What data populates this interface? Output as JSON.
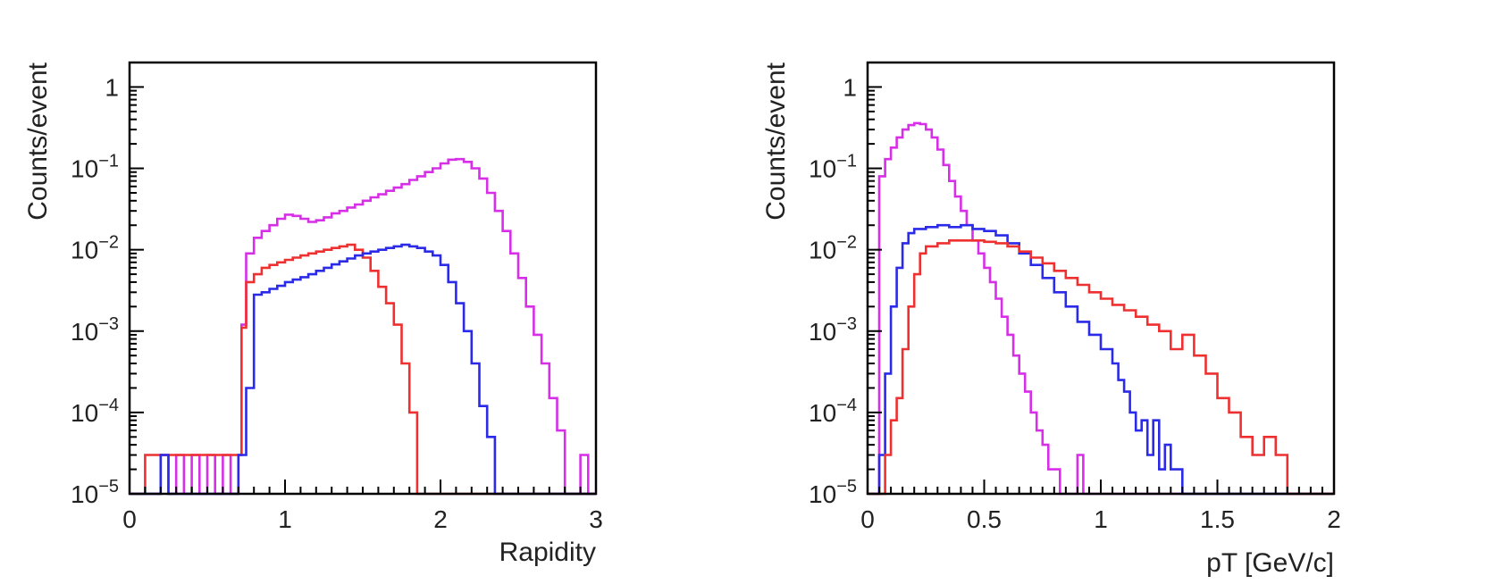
{
  "chart_data": [
    {
      "type": "line",
      "subtype": "step-histogram",
      "title": "",
      "xlabel": "Rapidity",
      "ylabel": "Counts/event",
      "yscale": "log",
      "xlim": [
        0,
        3
      ],
      "ylim": [
        1e-05,
        2
      ],
      "x_ticks": [
        "0",
        "1",
        "2",
        "3"
      ],
      "y_ticks": [
        {
          "base": "1",
          "exp": ""
        },
        {
          "base": "10",
          "exp": "−1"
        },
        {
          "base": "10",
          "exp": "−2"
        },
        {
          "base": "10",
          "exp": "−3"
        },
        {
          "base": "10",
          "exp": "−4"
        },
        {
          "base": "10",
          "exp": "−5"
        }
      ],
      "series": [
        {
          "name": "magenta",
          "color": "#d72ee8",
          "x": [
            0.0,
            0.2,
            0.25,
            0.3,
            0.35,
            0.4,
            0.45,
            0.5,
            0.55,
            0.6,
            0.65,
            0.7,
            0.72,
            0.75,
            0.8,
            0.85,
            0.9,
            0.95,
            1.0,
            1.05,
            1.1,
            1.15,
            1.2,
            1.25,
            1.3,
            1.35,
            1.4,
            1.45,
            1.5,
            1.55,
            1.6,
            1.65,
            1.7,
            1.75,
            1.8,
            1.85,
            1.9,
            1.95,
            2.0,
            2.05,
            2.1,
            2.15,
            2.2,
            2.25,
            2.3,
            2.35,
            2.4,
            2.45,
            2.5,
            2.55,
            2.6,
            2.65,
            2.7,
            2.75,
            2.8,
            2.85,
            2.9,
            2.95
          ],
          "y": [
            1e-05,
            3e-05,
            1e-05,
            3e-05,
            1e-05,
            3e-05,
            1e-05,
            3e-05,
            1e-05,
            3e-05,
            1e-05,
            3e-05,
            0.0012,
            0.009,
            0.014,
            0.017,
            0.02,
            0.024,
            0.027,
            0.026,
            0.024,
            0.022,
            0.023,
            0.025,
            0.028,
            0.03,
            0.033,
            0.036,
            0.04,
            0.044,
            0.048,
            0.053,
            0.058,
            0.064,
            0.072,
            0.08,
            0.09,
            0.1,
            0.115,
            0.128,
            0.13,
            0.12,
            0.1,
            0.075,
            0.05,
            0.03,
            0.017,
            0.009,
            0.0045,
            0.002,
            0.0009,
            0.0004,
            0.00015,
            6e-05,
            1e-05,
            1e-05,
            3e-05,
            1e-05
          ]
        },
        {
          "name": "red",
          "color": "#ee3030",
          "x": [
            0.0,
            0.1,
            0.15,
            0.2,
            0.25,
            0.3,
            0.35,
            0.4,
            0.45,
            0.5,
            0.55,
            0.6,
            0.65,
            0.7,
            0.72,
            0.75,
            0.8,
            0.85,
            0.9,
            0.95,
            1.0,
            1.05,
            1.1,
            1.15,
            1.2,
            1.25,
            1.3,
            1.35,
            1.4,
            1.45,
            1.5,
            1.55,
            1.6,
            1.65,
            1.7,
            1.75,
            1.8,
            1.85
          ],
          "y": [
            1e-05,
            3e-05,
            3e-05,
            3e-05,
            3e-05,
            3e-05,
            3e-05,
            3e-05,
            3e-05,
            3e-05,
            3e-05,
            3e-05,
            3e-05,
            3e-05,
            0.0011,
            0.004,
            0.005,
            0.006,
            0.0065,
            0.007,
            0.0075,
            0.008,
            0.0085,
            0.009,
            0.0095,
            0.01,
            0.0105,
            0.011,
            0.0115,
            0.01,
            0.008,
            0.0055,
            0.0035,
            0.0022,
            0.0012,
            0.0004,
            0.0001,
            1e-05
          ]
        },
        {
          "name": "blue",
          "color": "#2a2ae8",
          "x": [
            0.0,
            0.2,
            0.25,
            0.7,
            0.75,
            0.8,
            0.85,
            0.9,
            0.95,
            1.0,
            1.05,
            1.1,
            1.15,
            1.2,
            1.25,
            1.3,
            1.35,
            1.4,
            1.45,
            1.5,
            1.55,
            1.6,
            1.65,
            1.7,
            1.75,
            1.8,
            1.85,
            1.9,
            1.95,
            2.0,
            2.05,
            2.1,
            2.15,
            2.2,
            2.25,
            2.3,
            2.35
          ],
          "y": [
            1e-05,
            3e-05,
            1e-05,
            3e-05,
            0.0002,
            0.0028,
            0.003,
            0.0033,
            0.0036,
            0.004,
            0.0043,
            0.0046,
            0.005,
            0.0055,
            0.006,
            0.0066,
            0.0072,
            0.0078,
            0.0085,
            0.009,
            0.0095,
            0.01,
            0.0105,
            0.011,
            0.0115,
            0.011,
            0.0105,
            0.0095,
            0.0085,
            0.0065,
            0.004,
            0.0022,
            0.001,
            0.0004,
            0.00012,
            5e-05,
            1e-05
          ]
        }
      ]
    },
    {
      "type": "line",
      "subtype": "step-histogram",
      "title": "",
      "xlabel": "pT [GeV/c]",
      "ylabel": "Counts/event",
      "yscale": "log",
      "xlim": [
        0,
        2
      ],
      "ylim": [
        1e-05,
        2
      ],
      "x_ticks": [
        "0",
        "0.5",
        "1",
        "1.5",
        "2"
      ],
      "y_ticks": [
        {
          "base": "1",
          "exp": ""
        },
        {
          "base": "10",
          "exp": "−1"
        },
        {
          "base": "10",
          "exp": "−2"
        },
        {
          "base": "10",
          "exp": "−3"
        },
        {
          "base": "10",
          "exp": "−4"
        },
        {
          "base": "10",
          "exp": "−5"
        }
      ],
      "series": [
        {
          "name": "magenta",
          "color": "#d72ee8",
          "x": [
            0.0,
            0.05,
            0.075,
            0.1,
            0.125,
            0.15,
            0.175,
            0.2,
            0.225,
            0.25,
            0.275,
            0.3,
            0.325,
            0.35,
            0.375,
            0.4,
            0.425,
            0.45,
            0.475,
            0.5,
            0.525,
            0.55,
            0.575,
            0.6,
            0.625,
            0.65,
            0.675,
            0.7,
            0.725,
            0.75,
            0.775,
            0.8,
            0.825,
            0.85,
            0.875,
            0.9,
            0.925,
            0.95,
            1.0
          ],
          "y": [
            1e-05,
            0.08,
            0.13,
            0.18,
            0.24,
            0.3,
            0.34,
            0.36,
            0.35,
            0.3,
            0.24,
            0.17,
            0.11,
            0.07,
            0.045,
            0.03,
            0.02,
            0.013,
            0.009,
            0.006,
            0.004,
            0.0025,
            0.0015,
            0.0009,
            0.0005,
            0.0003,
            0.00018,
            0.0001,
            6e-05,
            4e-05,
            2e-05,
            2e-05,
            1e-05,
            1e-05,
            1e-05,
            3e-05,
            1e-05,
            1e-05,
            1e-05
          ]
        },
        {
          "name": "blue",
          "color": "#2a2ae8",
          "x": [
            0.0,
            0.05,
            0.075,
            0.1,
            0.125,
            0.15,
            0.175,
            0.2,
            0.25,
            0.3,
            0.35,
            0.4,
            0.45,
            0.5,
            0.55,
            0.6,
            0.65,
            0.7,
            0.75,
            0.8,
            0.85,
            0.9,
            0.95,
            1.0,
            1.05,
            1.075,
            1.1,
            1.125,
            1.15,
            1.175,
            1.2,
            1.225,
            1.25,
            1.275,
            1.3,
            1.35
          ],
          "y": [
            1e-05,
            3e-05,
            0.0003,
            0.002,
            0.006,
            0.012,
            0.016,
            0.018,
            0.019,
            0.02,
            0.019,
            0.02,
            0.018,
            0.017,
            0.015,
            0.012,
            0.009,
            0.0065,
            0.0045,
            0.003,
            0.002,
            0.0013,
            0.0009,
            0.0006,
            0.0004,
            0.00025,
            0.00018,
            0.0001,
            6e-05,
            8e-05,
            3e-05,
            8e-05,
            2e-05,
            4e-05,
            2e-05,
            1e-05
          ]
        },
        {
          "name": "red",
          "color": "#ee3030",
          "x": [
            0.0,
            0.075,
            0.1,
            0.125,
            0.15,
            0.175,
            0.2,
            0.225,
            0.25,
            0.3,
            0.35,
            0.4,
            0.45,
            0.5,
            0.55,
            0.6,
            0.65,
            0.7,
            0.75,
            0.8,
            0.85,
            0.9,
            0.95,
            1.0,
            1.05,
            1.1,
            1.15,
            1.2,
            1.25,
            1.3,
            1.35,
            1.4,
            1.45,
            1.5,
            1.55,
            1.6,
            1.65,
            1.7,
            1.75,
            1.8,
            1.85,
            1.9
          ],
          "y": [
            1e-05,
            3e-05,
            8e-05,
            0.00015,
            0.0006,
            0.002,
            0.005,
            0.009,
            0.011,
            0.012,
            0.013,
            0.013,
            0.013,
            0.0125,
            0.012,
            0.011,
            0.0095,
            0.008,
            0.0068,
            0.0055,
            0.0045,
            0.0037,
            0.003,
            0.0025,
            0.0021,
            0.0018,
            0.0015,
            0.0012,
            0.001,
            0.0006,
            0.0009,
            0.0005,
            0.0003,
            0.00015,
            0.0001,
            5e-05,
            3e-05,
            5e-05,
            3e-05,
            1e-05,
            1e-05,
            1e-05
          ]
        }
      ]
    }
  ]
}
